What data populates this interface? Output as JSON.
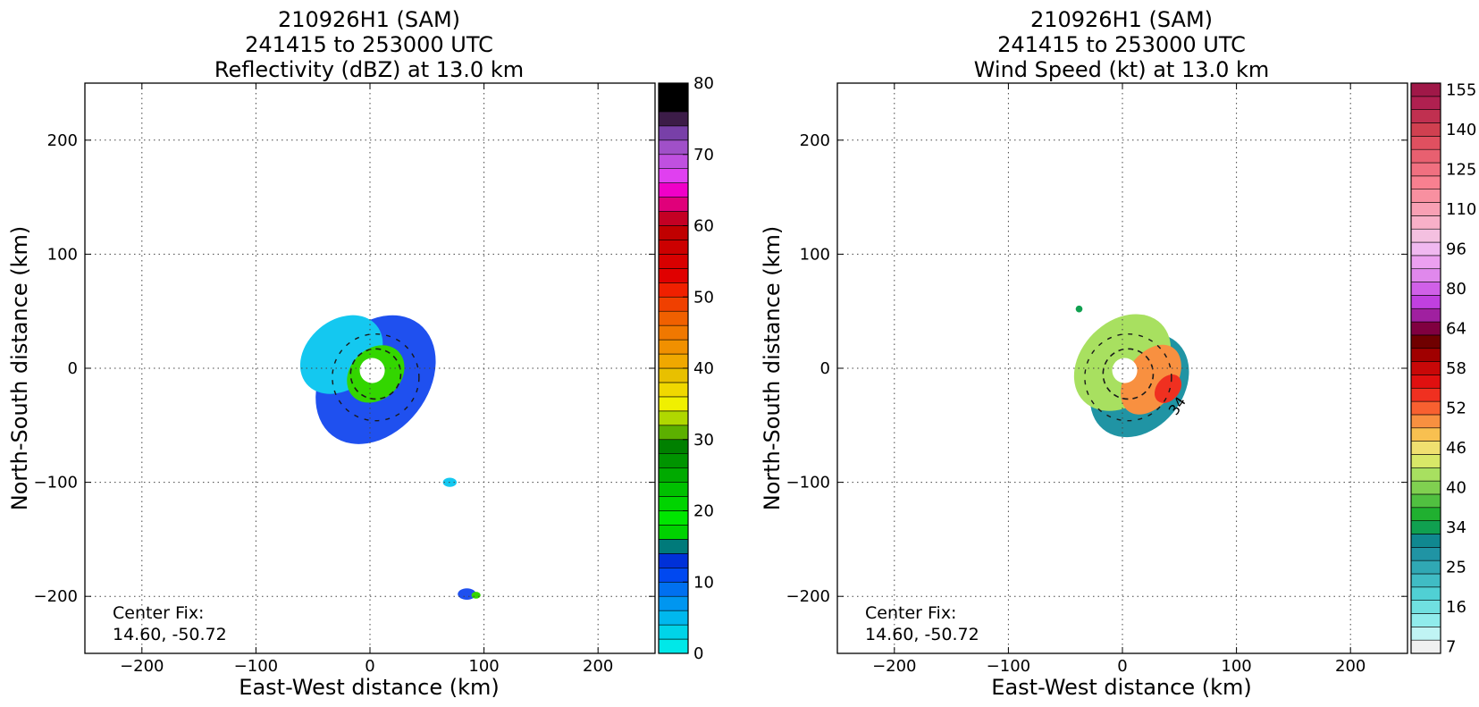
{
  "chart_data": [
    {
      "type": "heatmap",
      "title_lines": [
        "210926H1 (SAM)",
        "241415 to 253000 UTC",
        "Reflectivity (dBZ) at 13.0 km"
      ],
      "xlabel": "East-West distance (km)",
      "ylabel": "North-South distance (km)",
      "xlim": [
        -250,
        250
      ],
      "ylim": [
        -250,
        250
      ],
      "xticks": [
        -200,
        -100,
        0,
        100,
        200
      ],
      "yticks": [
        -200,
        -100,
        0,
        100,
        200
      ],
      "tick_labels_x": [
        "−200",
        "−100",
        "0",
        "100",
        "200"
      ],
      "tick_labels_y": [
        "−200",
        "−100",
        "0",
        "100",
        "200"
      ],
      "grid": true,
      "annotation": {
        "line1": "Center Fix:",
        "line2": "14.60, -50.72"
      },
      "colorbar": {
        "min": 0,
        "max": 80,
        "tick_values": [
          0,
          10,
          20,
          30,
          40,
          50,
          60,
          70,
          80
        ],
        "tick_labels": [
          "0",
          "10",
          "20",
          "30",
          "40",
          "50",
          "60",
          "70",
          "80"
        ],
        "colors": [
          "#00e8e8",
          "#00d4e8",
          "#00b8ee",
          "#0096f0",
          "#0070f0",
          "#0048f0",
          "#0030d8",
          "#007a7a",
          "#00d200",
          "#00e600",
          "#00d400",
          "#00c000",
          "#00aa00",
          "#009400",
          "#008000",
          "#5cb000",
          "#b0d800",
          "#f0f000",
          "#f0d800",
          "#e8c000",
          "#f0a800",
          "#f09000",
          "#f07800",
          "#f06000",
          "#f04000",
          "#f02000",
          "#e00000",
          "#d80000",
          "#cc0000",
          "#c00000",
          "#c40024",
          "#e0007a",
          "#f000c8",
          "#e040f0",
          "#c050e0",
          "#a050c8",
          "#7840a8",
          "#3c1c48",
          "#000000",
          "#000000"
        ]
      },
      "storm_echoes": [
        {
          "x": 5,
          "y": -10,
          "rx": 62,
          "ry": 46,
          "rot": -52,
          "color": "#1f50ef"
        },
        {
          "x": -25,
          "y": 12,
          "rx": 40,
          "ry": 30,
          "rot": -40,
          "color": "#14c8f0"
        },
        {
          "x": 5,
          "y": -5,
          "rx": 28,
          "ry": 22,
          "rot": -45,
          "color": "#33d600"
        },
        {
          "x": 70,
          "y": -100,
          "rx": 6,
          "ry": 4,
          "rot": 0,
          "color": "#14c8f0"
        },
        {
          "x": 85,
          "y": -198,
          "rx": 8,
          "ry": 5,
          "rot": 0,
          "color": "#1f50ef"
        },
        {
          "x": 93,
          "y": -199,
          "rx": 4,
          "ry": 3,
          "rot": 0,
          "color": "#33d600"
        }
      ]
    },
    {
      "type": "heatmap",
      "title_lines": [
        "210926H1 (SAM)",
        "241415 to 253000 UTC",
        "Wind Speed (kt) at 13.0 km"
      ],
      "xlabel": "East-West distance (km)",
      "ylabel": "North-South distance (km)",
      "xlim": [
        -250,
        250
      ],
      "ylim": [
        -250,
        250
      ],
      "xticks": [
        -200,
        -100,
        0,
        100,
        200
      ],
      "yticks": [
        -200,
        -100,
        0,
        100,
        200
      ],
      "tick_labels_x": [
        "−200",
        "−100",
        "0",
        "100",
        "200"
      ],
      "tick_labels_y": [
        "−200",
        "−100",
        "0",
        "100",
        "200"
      ],
      "grid": true,
      "annotation": {
        "line1": "Center Fix:",
        "line2": "14.60, -50.72"
      },
      "contour_label": "34",
      "colorbar": {
        "labels": [
          "7",
          "16",
          "25",
          "34",
          "40",
          "46",
          "52",
          "58",
          "64",
          "80",
          "96",
          "110",
          "125",
          "140",
          "155"
        ],
        "colors": [
          "#f0f0f0",
          "#c0f4f4",
          "#90ecec",
          "#70e0e0",
          "#50d0d4",
          "#40bcc4",
          "#30a8b4",
          "#2094a4",
          "#108890",
          "#10a050",
          "#20b030",
          "#50c040",
          "#80d050",
          "#a8e060",
          "#d8e868",
          "#f0e070",
          "#f8c050",
          "#f89040",
          "#f86030",
          "#f03020",
          "#e01010",
          "#c80808",
          "#a00000",
          "#700000",
          "#800040",
          "#a020a0",
          "#c040e0",
          "#d060e8",
          "#e088ec",
          "#eca0f0",
          "#f0b8f0",
          "#f4c0e0",
          "#f8b0c8",
          "#f8a0b4",
          "#f890a0",
          "#f88090",
          "#f07080",
          "#e86070",
          "#e05060",
          "#d04050",
          "#c03050",
          "#b02050",
          "#a01848"
        ]
      },
      "storm_winds": [
        {
          "x": 15,
          "y": -15,
          "rx": 50,
          "ry": 38,
          "rot": -50,
          "color": "#2094a4"
        },
        {
          "x": 0,
          "y": 5,
          "rx": 48,
          "ry": 36,
          "rot": -45,
          "color": "#a8e060"
        },
        {
          "x": 25,
          "y": -10,
          "rx": 34,
          "ry": 22,
          "rot": -55,
          "color": "#f89040"
        },
        {
          "x": 40,
          "y": -18,
          "rx": 14,
          "ry": 10,
          "rot": -50,
          "color": "#f03020"
        },
        {
          "x": -38,
          "y": 52,
          "rx": 3,
          "ry": 3,
          "rot": 0,
          "color": "#10a050"
        }
      ]
    }
  ]
}
